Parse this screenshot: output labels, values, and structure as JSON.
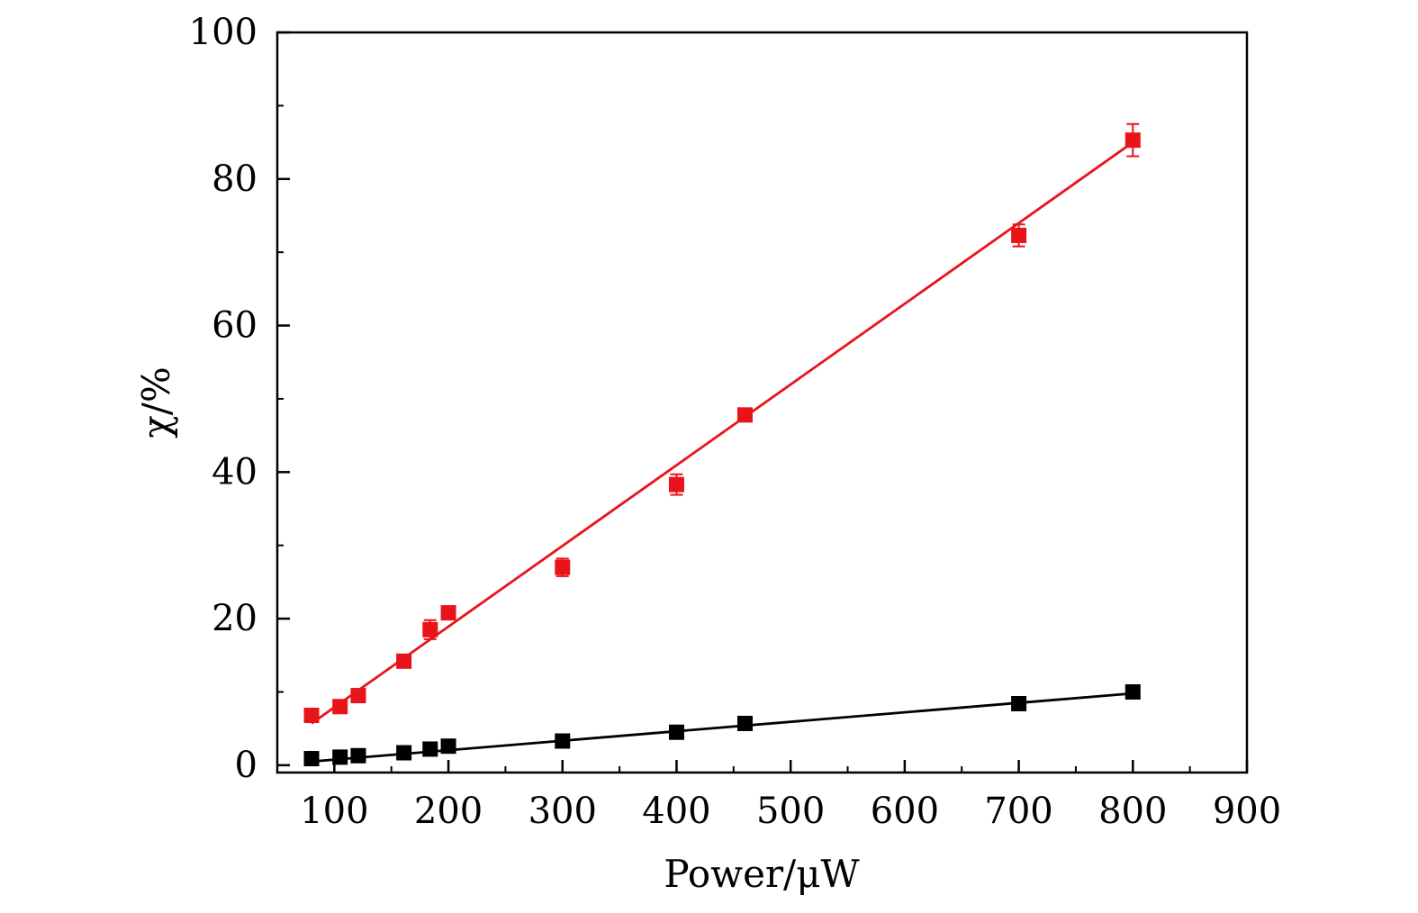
{
  "chart_data": {
    "type": "scatter",
    "title": "",
    "xlabel": "Power/μW",
    "ylabel": "χ/%",
    "xlim": [
      50,
      900
    ],
    "ylim": [
      -1,
      100
    ],
    "x_ticks": [
      100,
      200,
      300,
      400,
      500,
      600,
      700,
      800,
      900
    ],
    "y_ticks": [
      0,
      20,
      40,
      60,
      80,
      100
    ],
    "grid": false,
    "legend": "none",
    "series": [
      {
        "color": "#e8141a",
        "marker": "square",
        "x": [
          80,
          105,
          121,
          161,
          184,
          200,
          300,
          400,
          460,
          700,
          800
        ],
        "y": [
          6.8,
          8.0,
          9.5,
          14.2,
          18.5,
          20.8,
          27.0,
          38.3,
          47.8,
          72.3,
          85.3
        ],
        "error": [
          0.9,
          0.6,
          0.6,
          0.7,
          1.3,
          0.8,
          1.2,
          1.4,
          0.8,
          1.5,
          2.2
        ],
        "fit": {
          "x": [
            80,
            800
          ],
          "y": [
            5.7,
            85.0
          ]
        }
      },
      {
        "color": "#000000",
        "marker": "square",
        "x": [
          80,
          105,
          121,
          161,
          184,
          200,
          300,
          400,
          460,
          700,
          800
        ],
        "y": [
          0.9,
          1.1,
          1.3,
          1.7,
          2.2,
          2.6,
          3.3,
          4.5,
          5.7,
          8.4,
          10.0
        ],
        "error": [
          0.2,
          0.2,
          0.2,
          0.2,
          0.2,
          0.2,
          0.3,
          0.3,
          0.3,
          0.4,
          0.5
        ],
        "fit": {
          "x": [
            80,
            800
          ],
          "y": [
            0.5,
            9.8
          ]
        }
      }
    ]
  }
}
